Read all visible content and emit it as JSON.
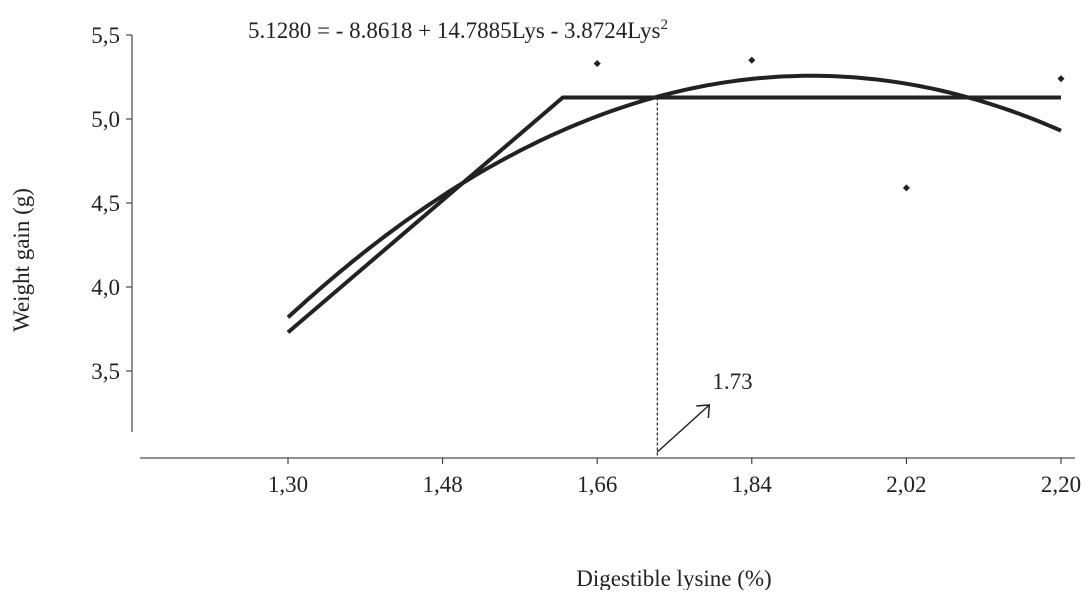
{
  "chart_data": {
    "type": "scatter",
    "equation": {
      "main": "5.1280 = - 8.8618 + 14.7885Lys - 3.8724Lys",
      "superscript": "2"
    },
    "xlabel": "Digestible lysine (%)",
    "ylabel": "Weight gain (g)",
    "xlim": [
      1.3,
      2.2
    ],
    "ylim": [
      3.0,
      5.5
    ],
    "x_ticks": [
      "1,30",
      "1,48",
      "1,66",
      "1,84",
      "2,02",
      "2,20"
    ],
    "x_tick_values": [
      1.3,
      1.48,
      1.66,
      1.84,
      2.02,
      2.2
    ],
    "y_ticks": [
      "3,5",
      "4,0",
      "4,5",
      "5,0",
      "5,5"
    ],
    "y_tick_values": [
      3.5,
      4.0,
      4.5,
      5.0,
      5.5
    ],
    "grid": false,
    "points": [
      {
        "x": 1.66,
        "y": 5.33
      },
      {
        "x": 1.84,
        "y": 5.35
      },
      {
        "x": 2.02,
        "y": 4.59
      },
      {
        "x": 2.2,
        "y": 5.24
      }
    ],
    "quadratic": {
      "a": -8.8618,
      "b": 14.7885,
      "c": -3.8724,
      "x_range": [
        1.3,
        2.2
      ]
    },
    "linear_plateau": {
      "x": [
        1.3,
        1.62,
        2.2
      ],
      "y": [
        3.73,
        5.128,
        5.128
      ]
    },
    "breakpoint": {
      "x": 1.73,
      "y": 5.128,
      "label": "1.73"
    }
  }
}
